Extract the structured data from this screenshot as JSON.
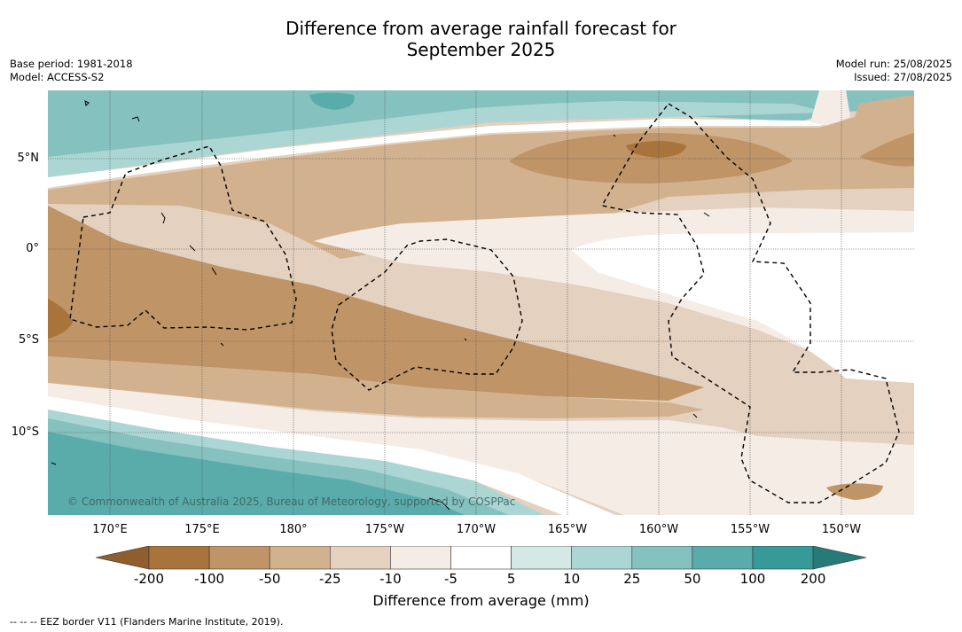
{
  "title_line1": "Difference from average rainfall forecast for",
  "title_line2": "September 2025",
  "meta_left": {
    "base_period": "Base period: 1981-2018",
    "model": "Model: ACCESS-S2"
  },
  "meta_right": {
    "model_run": "Model run: 25/08/2025",
    "issued": "Issued: 27/08/2025"
  },
  "lat_labels": [
    "5°N",
    "0°",
    "5°S",
    "10°S"
  ],
  "lon_labels": [
    "170°E",
    "175°E",
    "180°",
    "175°W",
    "170°W",
    "165°W",
    "160°W",
    "155°W",
    "150°W"
  ],
  "copyright": "© Commonwealth of Australia 2025, Bureau of Meteorology, supported by COSPPac",
  "legend": {
    "ticks": [
      "-200",
      "-100",
      "-50",
      "-25",
      "-10",
      "-5",
      "5",
      "10",
      "25",
      "50",
      "100",
      "200"
    ],
    "colors": [
      "#a9743b",
      "#bf9466",
      "#d2b18f",
      "#e4d1bf",
      "#f5ece6",
      "#ffffff",
      "#d4e9e6",
      "#acd6d4",
      "#84c1bf",
      "#5aacab",
      "#359a98"
    ],
    "under_color": "#8f5e2f",
    "over_color": "#267b78",
    "title": "Difference from average (mm)"
  },
  "footnote": "-- -- -- EEZ border V11 (Flanders Marine Institute, 2019)."
}
